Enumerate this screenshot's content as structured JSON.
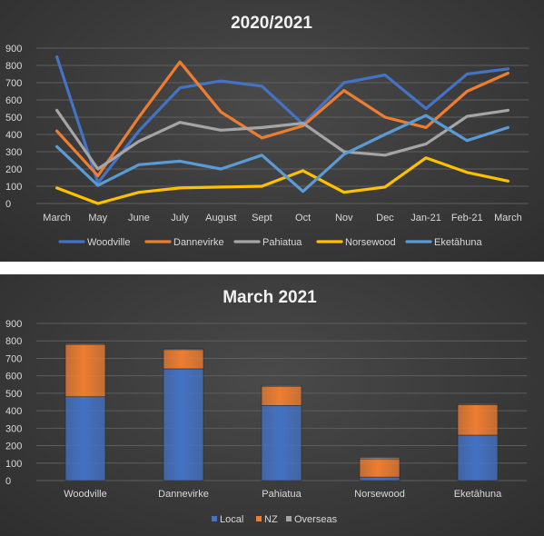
{
  "chart_data": [
    {
      "type": "line",
      "title": "2020/2021",
      "categories": [
        "March",
        "May",
        "June",
        "July",
        "August",
        "Sept",
        "Oct",
        "Nov",
        "Dec",
        "Jan-21",
        "Feb-21",
        "March"
      ],
      "ylim": [
        0,
        900
      ],
      "yticks": [
        0,
        100,
        200,
        300,
        400,
        500,
        600,
        700,
        800,
        900
      ],
      "grid": true,
      "legend_position": "bottom",
      "series": [
        {
          "name": "Woodville",
          "color": "#4472c4",
          "values": [
            850,
            120,
            420,
            670,
            710,
            680,
            460,
            700,
            745,
            550,
            750,
            780
          ]
        },
        {
          "name": "Dannevirke",
          "color": "#ed7d31",
          "values": [
            420,
            160,
            500,
            820,
            530,
            380,
            450,
            655,
            500,
            440,
            650,
            755
          ]
        },
        {
          "name": "Pahiatua",
          "color": "#a5a5a5",
          "values": [
            540,
            200,
            360,
            470,
            425,
            440,
            465,
            300,
            280,
            345,
            505,
            540
          ]
        },
        {
          "name": "Norsewood",
          "color": "#ffc000",
          "values": [
            90,
            0,
            65,
            90,
            95,
            100,
            190,
            65,
            95,
            265,
            180,
            130
          ]
        },
        {
          "name": "Eketāhuna",
          "color": "#5b9bd5",
          "values": [
            330,
            105,
            225,
            245,
            200,
            280,
            70,
            285,
            400,
            510,
            365,
            440
          ]
        }
      ]
    },
    {
      "type": "bar",
      "stacked": true,
      "title": "March 2021",
      "categories": [
        "Woodville",
        "Dannevirke",
        "Pahiatua",
        "Norsewood",
        "Eketāhuna"
      ],
      "ylim": [
        0,
        900
      ],
      "yticks": [
        0,
        100,
        200,
        300,
        400,
        500,
        600,
        700,
        800,
        900
      ],
      "grid": true,
      "legend_position": "bottom",
      "series": [
        {
          "name": "Local",
          "color": "#4472c4",
          "values": [
            480,
            640,
            430,
            20,
            260
          ]
        },
        {
          "name": "NZ",
          "color": "#ed7d31",
          "values": [
            300,
            110,
            110,
            105,
            175
          ]
        },
        {
          "name": "Overseas",
          "color": "#a5a5a5",
          "values": [
            5,
            5,
            5,
            8,
            5
          ]
        }
      ]
    }
  ]
}
